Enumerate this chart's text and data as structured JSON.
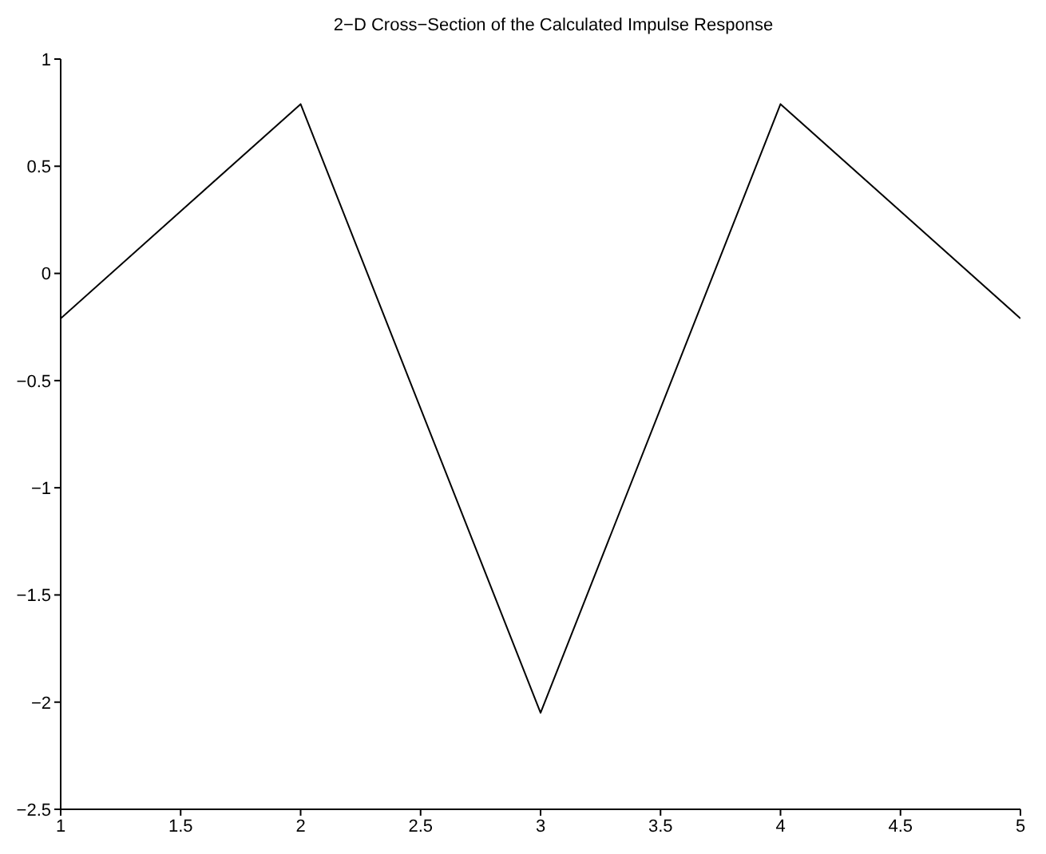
{
  "chart_data": {
    "type": "line",
    "title": "2−D Cross−Section of the Calculated Impulse Response",
    "x": [
      1,
      2,
      3,
      4,
      5
    ],
    "series": [
      {
        "color": "#000000",
        "values": [
          -0.21,
          0.79,
          -2.05,
          0.79,
          -0.21
        ]
      }
    ],
    "xlim": [
      1,
      5
    ],
    "xticks": [
      1,
      1.5,
      2,
      2.5,
      3,
      3.5,
      4,
      4.5,
      5
    ],
    "ylim": [
      -2.5,
      1
    ],
    "yticks": [
      -2.5,
      -2,
      -1.5,
      -1,
      -0.5,
      0,
      0.5,
      1
    ],
    "grid": false,
    "marker": "none",
    "line_style": "solid"
  }
}
